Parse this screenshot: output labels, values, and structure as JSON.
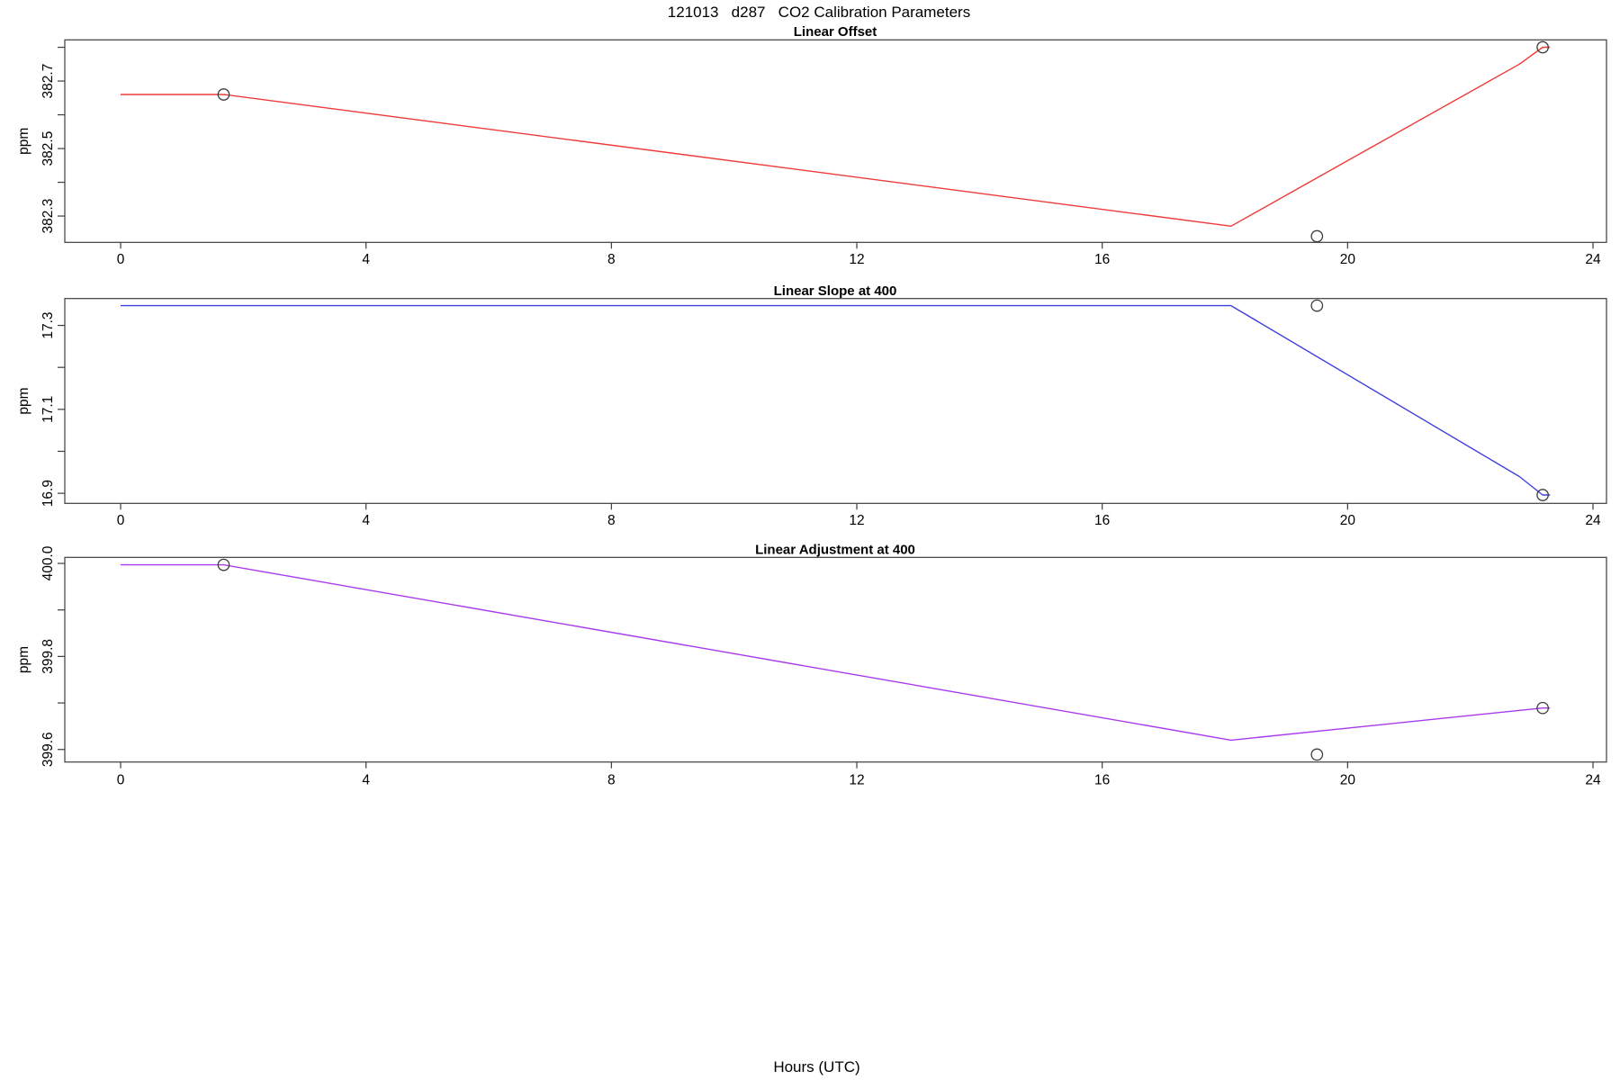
{
  "header": {
    "title": "121013   d287   CO2 Calibration Parameters"
  },
  "footer": {
    "xlabel": "Hours (UTC)"
  },
  "chart_data": [
    {
      "type": "line",
      "title": "Linear Offset",
      "ylabel": "ppm",
      "color": "#ee3b3b",
      "point_color": "#3c3c3c",
      "xlim": [
        -0.91,
        24.22
      ],
      "x_ticks": [
        0,
        4,
        8,
        12,
        16,
        20,
        24
      ],
      "ylim": [
        382.222,
        382.822
      ],
      "y_ticks": [
        {
          "v": 382.3,
          "label": "382.3"
        },
        {
          "v": 382.4,
          "label": ""
        },
        {
          "v": 382.5,
          "label": "382.5"
        },
        {
          "v": 382.6,
          "label": ""
        },
        {
          "v": 382.7,
          "label": "382.7"
        },
        {
          "v": 382.8,
          "label": ""
        }
      ],
      "line": [
        [
          0,
          382.66
        ],
        [
          1.68,
          382.66
        ],
        [
          18.1,
          382.27
        ],
        [
          22.8,
          382.75
        ],
        [
          23.18,
          382.8
        ],
        [
          23.3,
          382.8
        ]
      ],
      "points": [
        [
          1.68,
          382.66
        ],
        [
          19.5,
          382.24
        ],
        [
          23.18,
          382.8
        ]
      ]
    },
    {
      "type": "line",
      "title": "Linear Slope at 400",
      "ylabel": "ppm",
      "color": "#4040dd",
      "point_color": "#3c3c3c",
      "xlim": [
        -0.91,
        24.22
      ],
      "x_ticks": [
        0,
        4,
        8,
        12,
        16,
        20,
        24
      ],
      "ylim": [
        16.876,
        17.364
      ],
      "y_ticks": [
        {
          "v": 16.9,
          "label": "16.9"
        },
        {
          "v": 17.0,
          "label": ""
        },
        {
          "v": 17.1,
          "label": "17.1"
        },
        {
          "v": 17.2,
          "label": ""
        },
        {
          "v": 17.3,
          "label": "17.3"
        }
      ],
      "line": [
        [
          0,
          17.347
        ],
        [
          18.1,
          17.347
        ],
        [
          22.8,
          16.94
        ],
        [
          23.18,
          16.896
        ],
        [
          23.3,
          16.896
        ]
      ],
      "points": [
        [
          19.5,
          17.347
        ],
        [
          23.18,
          16.896
        ]
      ]
    },
    {
      "type": "line",
      "title": "Linear Adjustment at 400",
      "ylabel": "ppm",
      "color": "#a93bef",
      "point_color": "#3c3c3c",
      "xlim": [
        -0.91,
        24.22
      ],
      "x_ticks": [
        0,
        4,
        8,
        12,
        16,
        20,
        24
      ],
      "ylim": [
        399.573,
        400.013
      ],
      "y_ticks": [
        {
          "v": 399.6,
          "label": "399.6"
        },
        {
          "v": 399.7,
          "label": ""
        },
        {
          "v": 399.8,
          "label": "399.8"
        },
        {
          "v": 399.9,
          "label": ""
        },
        {
          "v": 400.0,
          "label": "400.0"
        }
      ],
      "line": [
        [
          0,
          399.997
        ],
        [
          1.68,
          399.997
        ],
        [
          18.1,
          399.62
        ],
        [
          23.18,
          399.689
        ],
        [
          23.3,
          399.689
        ]
      ],
      "points": [
        [
          1.68,
          399.997
        ],
        [
          19.5,
          399.589
        ],
        [
          23.18,
          399.689
        ]
      ]
    }
  ]
}
